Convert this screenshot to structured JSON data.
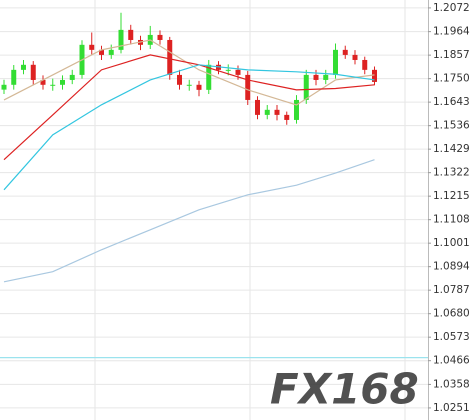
{
  "chart_data": {
    "type": "candlestick",
    "ylim": [
      1.0196,
      1.2108
    ],
    "yticks": [
      1.2072,
      1.1964,
      1.1857,
      {
        "value": 1.175,
        "label": "1.1750"
      },
      1.1643,
      1.1536,
      1.1429,
      1.1322,
      1.1215,
      1.1108,
      1.1001,
      1.0894,
      1.0787,
      {
        "value": 1.068,
        "label": "1.0680"
      },
      1.0573,
      1.0466,
      1.0358,
      1.0251
    ],
    "grid": true,
    "up_color": "#33dd33",
    "down_color": "#dd2222",
    "open": [
      1.17,
      1.1722,
      1.179,
      1.1813,
      1.1744,
      1.1722,
      1.1722,
      1.1744,
      1.1767,
      1.1904,
      1.1881,
      1.1858,
      1.1881,
      1.1972,
      1.1926,
      1.1904,
      1.1949,
      1.1926,
      1.1767,
      1.1722,
      1.1722,
      1.1699,
      1.1813,
      1.179,
      1.179,
      1.1767,
      1.1653,
      1.1585,
      1.1608,
      1.1585,
      1.1562,
      1.1653,
      1.1767,
      1.1744,
      1.1767,
      1.1881,
      1.1858,
      1.1835,
      1.179
    ],
    "high": [
      1.1745,
      1.1812,
      1.1835,
      1.183,
      1.1765,
      1.175,
      1.1765,
      1.179,
      1.1925,
      1.196,
      1.19,
      1.1905,
      1.205,
      1.1995,
      1.1945,
      1.199,
      1.197,
      1.194,
      1.179,
      1.1745,
      1.174,
      1.1835,
      1.183,
      1.1815,
      1.181,
      1.1785,
      1.167,
      1.163,
      1.163,
      1.16,
      1.1675,
      1.179,
      1.179,
      1.179,
      1.191,
      1.19,
      1.188,
      1.185,
      1.1805
    ],
    "low": [
      1.168,
      1.17,
      1.177,
      1.172,
      1.17,
      1.1695,
      1.17,
      1.1725,
      1.175,
      1.186,
      1.1835,
      1.184,
      1.1865,
      1.1905,
      1.188,
      1.1885,
      1.1905,
      1.1745,
      1.17,
      1.1695,
      1.167,
      1.168,
      1.177,
      1.1765,
      1.1745,
      1.163,
      1.1565,
      1.1565,
      1.156,
      1.154,
      1.1545,
      1.1635,
      1.172,
      1.1725,
      1.175,
      1.184,
      1.1815,
      1.177,
      1.172
    ],
    "close": [
      1.1722,
      1.179,
      1.1813,
      1.1744,
      1.1722,
      1.1722,
      1.1744,
      1.1767,
      1.1904,
      1.1881,
      1.1858,
      1.1881,
      1.1972,
      1.1926,
      1.1904,
      1.1949,
      1.1926,
      1.1767,
      1.1722,
      1.1722,
      1.1699,
      1.1813,
      1.179,
      1.179,
      1.1767,
      1.1653,
      1.1585,
      1.1608,
      1.1585,
      1.1562,
      1.1653,
      1.1767,
      1.1744,
      1.1767,
      1.1881,
      1.1858,
      1.1835,
      1.179,
      1.1735
    ],
    "lines": [
      {
        "color": "#d4b896",
        "x": [
          0,
          5,
          10,
          15,
          20,
          25,
          30,
          34,
          38
        ],
        "values": [
          1.1653,
          1.1767,
          1.1881,
          1.1926,
          1.179,
          1.1699,
          1.163,
          1.1744,
          1.1767
        ]
      },
      {
        "color": "#dd2222",
        "x": [
          0,
          5,
          10,
          15,
          20,
          25,
          30,
          34,
          38
        ],
        "values": [
          1.1381,
          1.1585,
          1.179,
          1.1858,
          1.1813,
          1.1744,
          1.1699,
          1.1705,
          1.1722
        ]
      },
      {
        "color": "#33c6e0",
        "x": [
          0,
          5,
          10,
          15,
          20,
          25,
          30,
          34,
          38
        ],
        "values": [
          1.1244,
          1.1494,
          1.1631,
          1.1744,
          1.1813,
          1.179,
          1.1781,
          1.177,
          1.1744
        ]
      },
      {
        "color": "#a9c8e0",
        "x": [
          0,
          5,
          10,
          15,
          20,
          25,
          30,
          34,
          38
        ],
        "values": [
          1.0825,
          1.0871,
          1.0971,
          1.1062,
          1.1153,
          1.1221,
          1.1265,
          1.132,
          1.1381
        ]
      }
    ],
    "hline": {
      "value": 1.048,
      "color": "#9be3ee"
    },
    "watermark": "FX168"
  }
}
